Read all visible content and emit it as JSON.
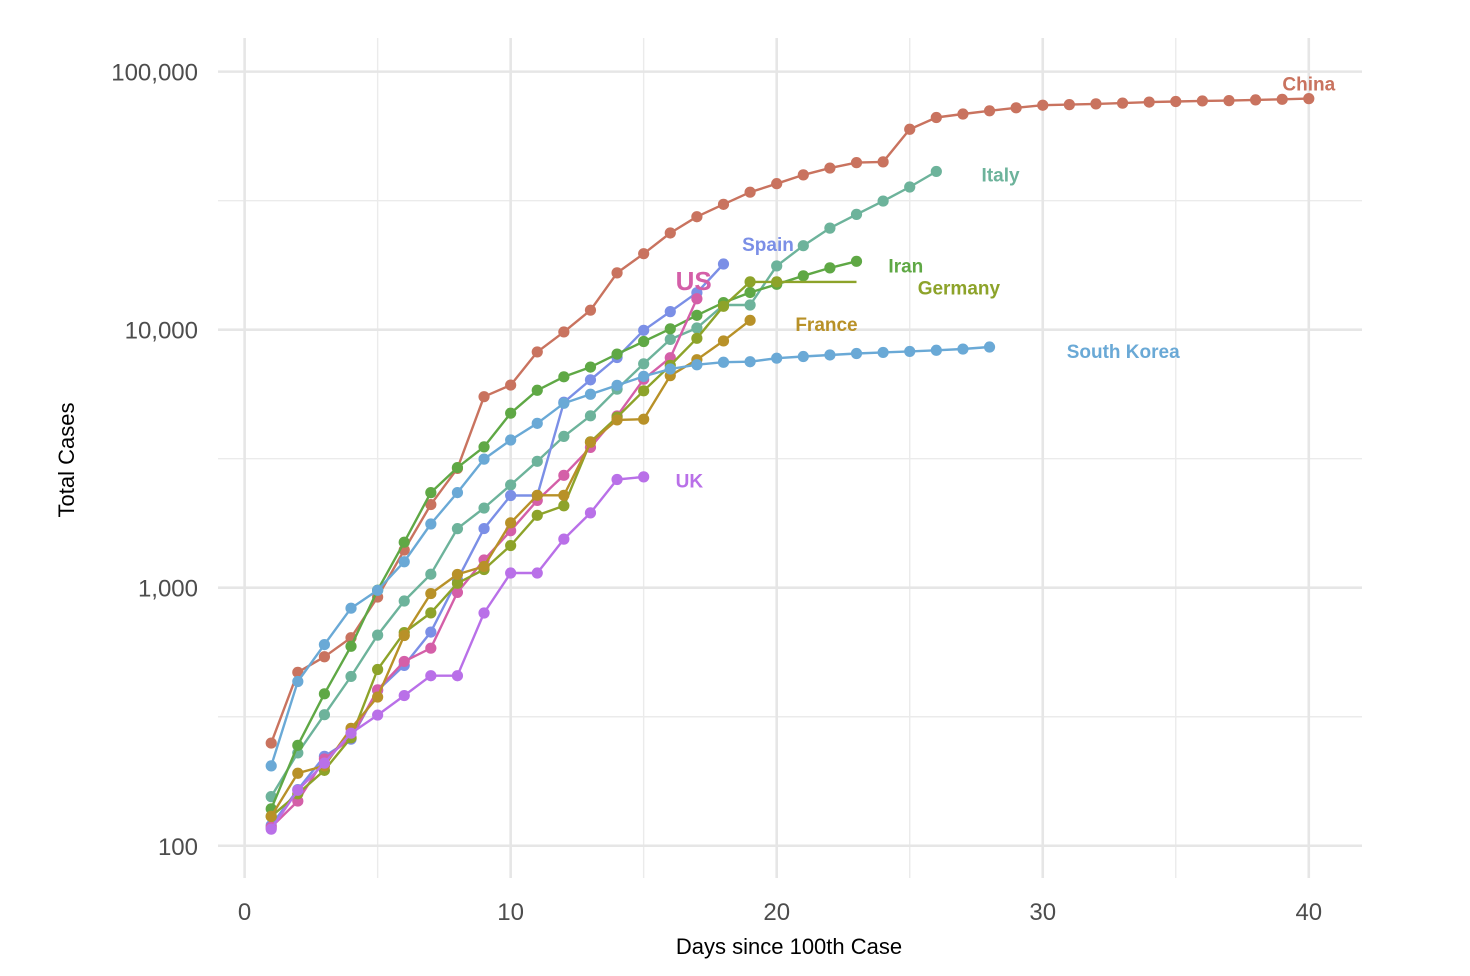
{
  "chart_data": {
    "type": "line",
    "xlabel": "Days since 100th Case",
    "ylabel": "Total Cases",
    "yscale": "log",
    "xlim": [
      -1,
      42
    ],
    "ylim": [
      75,
      135000
    ],
    "grid": true,
    "x_ticks": [
      {
        "value": 0,
        "label": "0"
      },
      {
        "value": 10,
        "label": "10"
      },
      {
        "value": 20,
        "label": "20"
      },
      {
        "value": 30,
        "label": "30"
      },
      {
        "value": 40,
        "label": "40"
      }
    ],
    "x_minor_ticks": [
      5,
      15,
      25,
      35
    ],
    "y_ticks": [
      {
        "value": 100,
        "label": "100"
      },
      {
        "value": 1000,
        "label": "1,000"
      },
      {
        "value": 10000,
        "label": "10,000"
      },
      {
        "value": 100000,
        "label": "100,000"
      }
    ],
    "y_minor_ticks": [
      316.23,
      3162.3,
      31623
    ],
    "series": [
      {
        "name": "China",
        "color": "#C9735F",
        "x": [
          1,
          2,
          3,
          4,
          5,
          6,
          7,
          8,
          9,
          10,
          11,
          12,
          13,
          14,
          15,
          16,
          17,
          18,
          19,
          20,
          21,
          22,
          23,
          24,
          25,
          26,
          27,
          28,
          29,
          30,
          31,
          32,
          33,
          34,
          35,
          36,
          37,
          38,
          39,
          40
        ],
        "y": [
          250,
          470,
          540,
          640,
          920,
          1400,
          2100,
          2900,
          5500,
          6100,
          8200,
          9800,
          11900,
          16600,
          19700,
          23700,
          27400,
          30600,
          34100,
          36800,
          39800,
          42300,
          44400,
          44700,
          59800,
          66400,
          68500,
          70500,
          72400,
          74100,
          74500,
          75000,
          75500,
          76200,
          76600,
          77000,
          77200,
          77700,
          78100,
          78600
        ]
      },
      {
        "name": "Italy",
        "color": "#6DB39B",
        "x": [
          1,
          2,
          3,
          4,
          5,
          6,
          7,
          8,
          9,
          10,
          11,
          12,
          13,
          14,
          15,
          16,
          17,
          18,
          19,
          20,
          21,
          22,
          23,
          24,
          25,
          26
        ],
        "y": [
          155,
          229,
          322,
          453,
          655,
          888,
          1128,
          1694,
          2036,
          2502,
          3089,
          3858,
          4636,
          5883,
          7375,
          9172,
          10149,
          12462,
          12462,
          17660,
          21157,
          24747,
          27980,
          31506,
          35713,
          41035
        ]
      },
      {
        "name": "Spain",
        "color": "#7B8FE6",
        "x": [
          1,
          2,
          3,
          4,
          5,
          6,
          7,
          8,
          9,
          10,
          11,
          12,
          13,
          14,
          15,
          16,
          17,
          18
        ],
        "y": [
          120,
          165,
          222,
          259,
          400,
          500,
          673,
          1073,
          1695,
          2277,
          2277,
          5232,
          6391,
          7798,
          9942,
          11748,
          13910,
          17963
        ]
      },
      {
        "name": "Iran",
        "color": "#5FA845",
        "x": [
          1,
          2,
          3,
          4,
          5,
          6,
          7,
          8,
          9,
          10,
          11,
          12,
          13,
          14,
          15,
          16,
          17,
          18,
          19,
          20,
          21,
          22,
          23
        ],
        "y": [
          139,
          245,
          388,
          593,
          978,
          1501,
          2336,
          2922,
          3513,
          4747,
          5823,
          6566,
          7161,
          8042,
          9000,
          10075,
          11364,
          12729,
          13938,
          14991,
          16169,
          17361,
          18407
        ]
      },
      {
        "name": "US",
        "color": "#D45FA8",
        "x": [
          1,
          2,
          3,
          4,
          5,
          6,
          7,
          8,
          9,
          10,
          11,
          12,
          13,
          14,
          15,
          16,
          17
        ],
        "y": [
          118,
          149,
          217,
          262,
          402,
          518,
          583,
          959,
          1281,
          1663,
          2179,
          2726,
          3499,
          4632,
          6421,
          7786,
          13177
        ]
      },
      {
        "name": "Germany",
        "color": "#8DA32A",
        "x": [
          1,
          2,
          3,
          4,
          5,
          6,
          7,
          8,
          9,
          10,
          11,
          12,
          13,
          14,
          15,
          16,
          17,
          18,
          19,
          20,
          23
        ],
        "y": [
          130,
          159,
          196,
          262,
          482,
          670,
          799,
          1040,
          1176,
          1457,
          1908,
          2078,
          3675,
          4585,
          5795,
          7272,
          9257,
          12327,
          15320,
          15320,
          15320
        ]
      },
      {
        "name": "France",
        "color": "#B89128",
        "x": [
          1,
          2,
          3,
          4,
          5,
          6,
          7,
          8,
          9,
          10,
          11,
          12,
          13,
          14,
          15,
          16,
          17,
          18,
          19
        ],
        "y": [
          130,
          191,
          204,
          285,
          377,
          653,
          949,
          1126,
          1209,
          1784,
          2281,
          2281,
          3661,
          4469,
          4499,
          6633,
          7652,
          9043,
          10871
        ]
      },
      {
        "name": "South Korea",
        "color": "#6AA9D6",
        "x": [
          1,
          2,
          3,
          4,
          5,
          6,
          7,
          8,
          9,
          10,
          11,
          12,
          13,
          14,
          15,
          16,
          17,
          18,
          19,
          20,
          21,
          22,
          23,
          24,
          25,
          26,
          27,
          28
        ],
        "y": [
          204,
          433,
          602,
          833,
          977,
          1261,
          1766,
          2337,
          3150,
          3736,
          4335,
          5186,
          5621,
          6088,
          6593,
          7041,
          7313,
          7478,
          7513,
          7755,
          7869,
          7979,
          8086,
          8162,
          8236,
          8320,
          8413,
          8565
        ]
      },
      {
        "name": "UK",
        "color": "#B970E8",
        "x": [
          1,
          2,
          3,
          4,
          5,
          6,
          7,
          8,
          9,
          10,
          11,
          12,
          13,
          14,
          15
        ],
        "y": [
          116,
          164,
          209,
          273,
          321,
          382,
          456,
          456,
          798,
          1140,
          1140,
          1543,
          1950,
          2626,
          2689
        ]
      }
    ],
    "annotations": [
      {
        "series": "China",
        "text": "China",
        "x": 40,
        "y": 90000
      },
      {
        "series": "Italy",
        "text": "Italy",
        "x": 27.7,
        "y": 40000
      },
      {
        "series": "Spain",
        "text": "Spain",
        "x": 18.7,
        "y": 21500
      },
      {
        "series": "Iran",
        "text": "Iran",
        "x": 24.2,
        "y": 17700
      },
      {
        "series": "US",
        "text": "US",
        "x": 16.2,
        "y": 15200
      },
      {
        "series": "Germany",
        "text": "Germany",
        "x": 25.3,
        "y": 14600
      },
      {
        "series": "France",
        "text": "France",
        "x": 20.7,
        "y": 10500
      },
      {
        "series": "South Korea",
        "text": "South Korea",
        "x": 30.9,
        "y": 8250
      },
      {
        "series": "UK",
        "text": "UK",
        "x": 16.2,
        "y": 2600
      }
    ]
  }
}
